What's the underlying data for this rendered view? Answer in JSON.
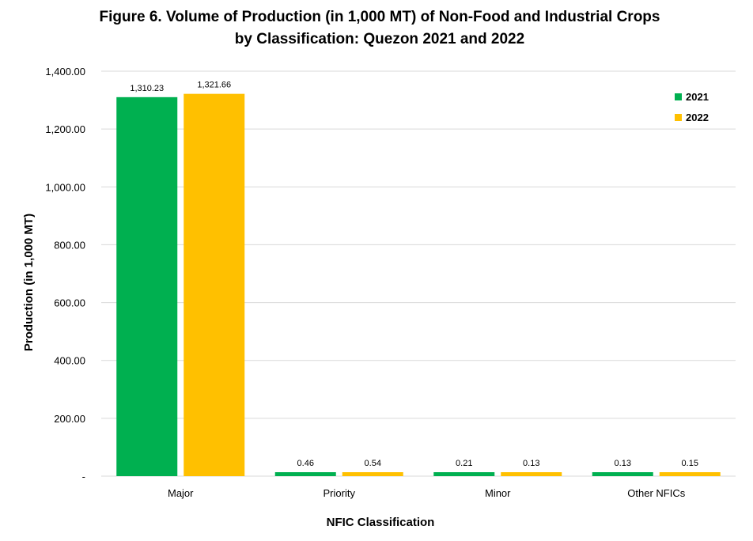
{
  "chart_data": {
    "type": "bar",
    "title_line1": "Figure 6. Volume of Production (in 1,000 MT) of Non-Food and Industrial Crops",
    "title_line2": "by Classification: Quezon 2021 and 2022",
    "xlabel": "NFIC Classification",
    "ylabel": "Production (in 1,000 MT)",
    "ylim": [
      0,
      1400
    ],
    "y_ticks": [
      {
        "value": 0,
        "label": "-"
      },
      {
        "value": 200,
        "label": "200.00"
      },
      {
        "value": 400,
        "label": "400.00"
      },
      {
        "value": 600,
        "label": "600.00"
      },
      {
        "value": 800,
        "label": "800.00"
      },
      {
        "value": 1000,
        "label": "1,000.00"
      },
      {
        "value": 1200,
        "label": "1,200.00"
      },
      {
        "value": 1400,
        "label": "1,400.00"
      }
    ],
    "categories": [
      "Major",
      "Priority",
      "Minor",
      "Other NFICs"
    ],
    "series": [
      {
        "name": "2021",
        "color": "#00B050",
        "values": [
          1310.23,
          0.46,
          0.21,
          0.13
        ],
        "labels": [
          "1,310.23",
          "0.46",
          "0.21",
          "0.13"
        ]
      },
      {
        "name": "2022",
        "color": "#FFC000",
        "values": [
          1321.66,
          0.54,
          0.13,
          0.15
        ],
        "labels": [
          "1,321.66",
          "0.54",
          "0.13",
          "0.15"
        ]
      }
    ],
    "grid": true,
    "legend_position": "top-right"
  }
}
